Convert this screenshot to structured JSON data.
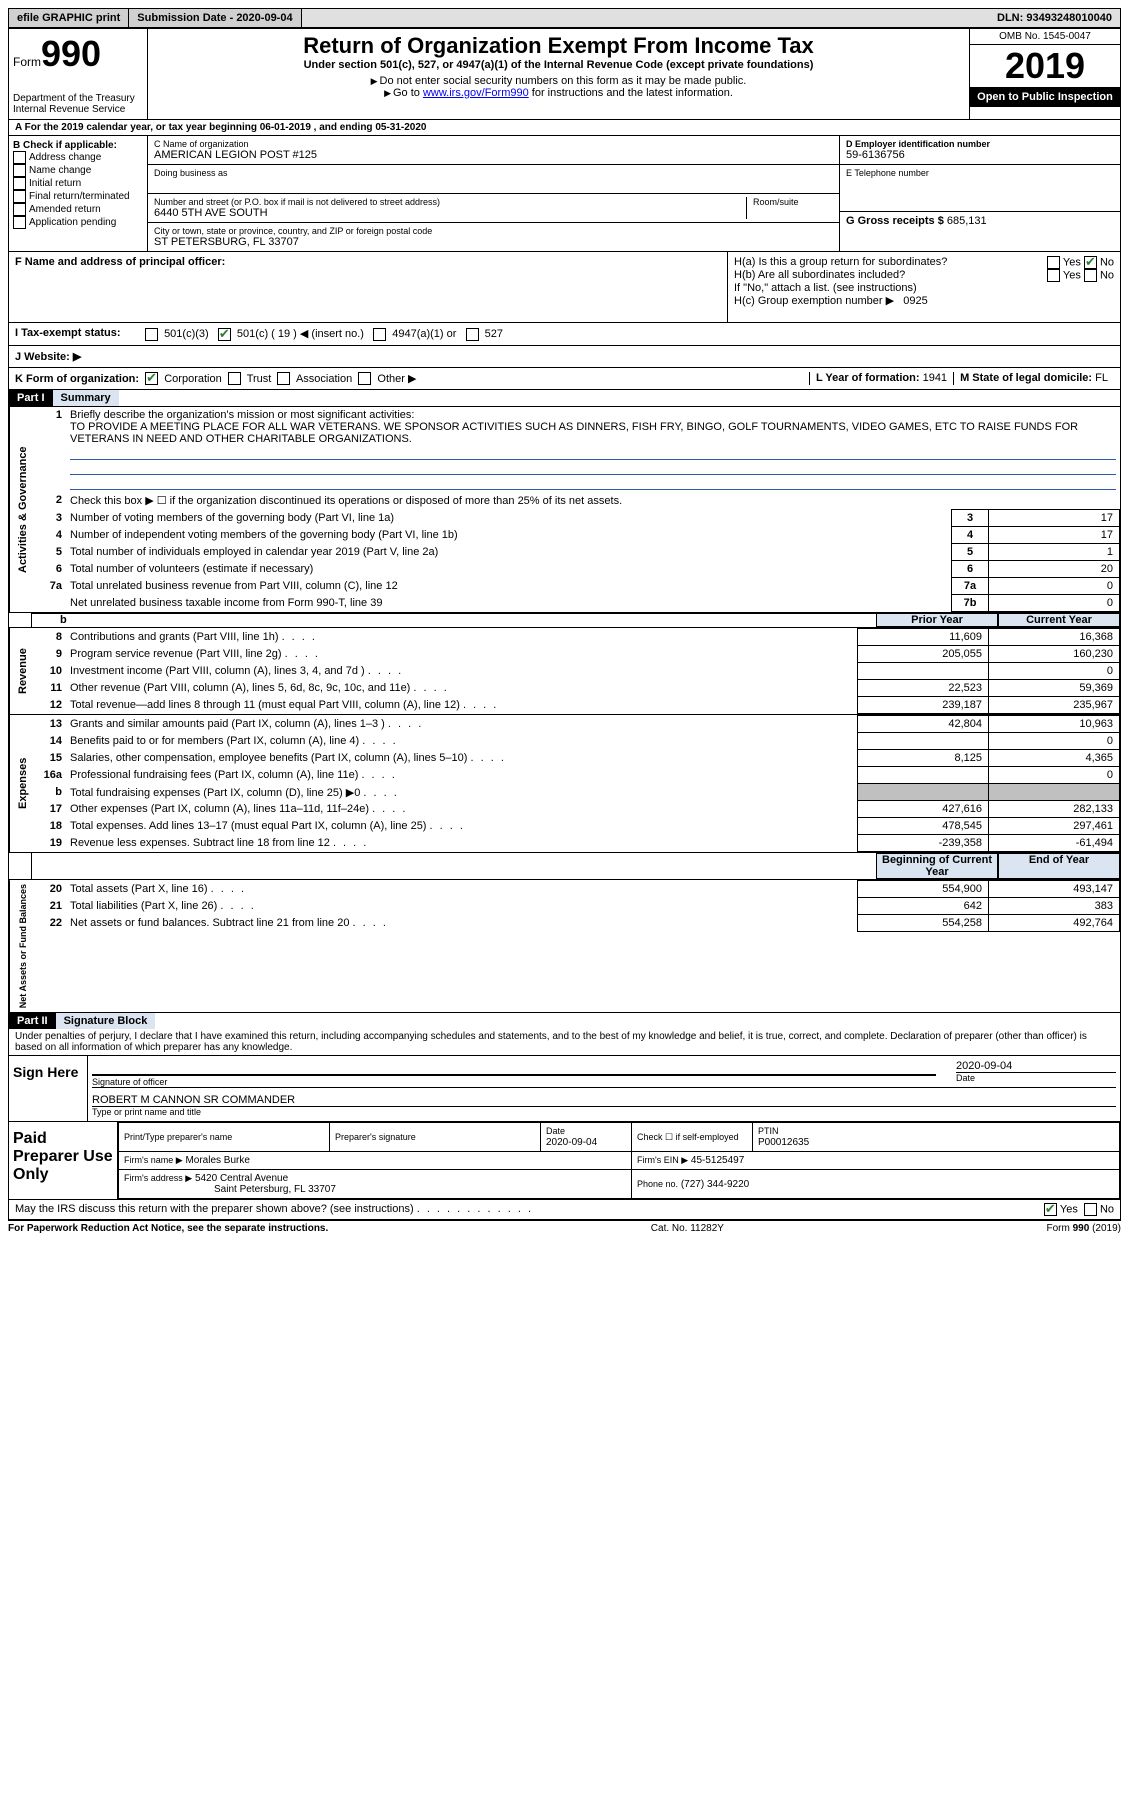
{
  "topbar": {
    "efile": "efile GRAPHIC print",
    "submission_label": "Submission Date - 2020-09-04",
    "dln": "DLN: 93493248010040"
  },
  "header": {
    "form_word": "Form",
    "form_number": "990",
    "dept": "Department of the Treasury",
    "irs": "Internal Revenue Service",
    "title": "Return of Organization Exempt From Income Tax",
    "subtitle": "Under section 501(c), 527, or 4947(a)(1) of the Internal Revenue Code (except private foundations)",
    "note1": "Do not enter social security numbers on this form as it may be made public.",
    "note2_pre": "Go to ",
    "note2_link": "www.irs.gov/Form990",
    "note2_post": " for instructions and the latest information.",
    "omb": "OMB No. 1545-0047",
    "year": "2019",
    "inspection": "Open to Public Inspection"
  },
  "section_a": "A For the 2019 calendar year, or tax year beginning 06-01-2019   , and ending 05-31-2020",
  "section_b": {
    "label": "B Check if applicable:",
    "items": [
      "Address change",
      "Name change",
      "Initial return",
      "Final return/terminated",
      "Amended return",
      "Application pending"
    ]
  },
  "section_c": {
    "name_label": "C Name of organization",
    "name": "AMERICAN LEGION POST #125",
    "dba_label": "Doing business as",
    "addr_label": "Number and street (or P.O. box if mail is not delivered to street address)",
    "room_label": "Room/suite",
    "addr": "6440 5TH AVE SOUTH",
    "city_label": "City or town, state or province, country, and ZIP or foreign postal code",
    "city": "ST PETERSBURG, FL  33707"
  },
  "section_d": {
    "label": "D Employer identification number",
    "value": "59-6136756"
  },
  "section_e": {
    "label": "E Telephone number"
  },
  "section_g": {
    "label": "G Gross receipts $",
    "value": "685,131"
  },
  "section_f": {
    "label": "F  Name and address of principal officer:"
  },
  "section_h": {
    "ha": "H(a)  Is this a group return for subordinates?",
    "hb": "H(b)  Are all subordinates included?",
    "hb_note": "If \"No,\" attach a list. (see instructions)",
    "hc": "H(c)  Group exemption number ▶",
    "hc_val": "0925",
    "yes": "Yes",
    "no": "No"
  },
  "section_i": {
    "label": "I  Tax-exempt status:",
    "opts": [
      "501(c)(3)",
      "501(c) ( 19 ) ◀ (insert no.)",
      "4947(a)(1) or",
      "527"
    ]
  },
  "section_j": {
    "label": "J  Website: ▶"
  },
  "section_k": {
    "label": "K Form of organization:",
    "opts": [
      "Corporation",
      "Trust",
      "Association",
      "Other ▶"
    ]
  },
  "section_l": {
    "label": "L Year of formation:",
    "value": "1941"
  },
  "section_m": {
    "label": "M State of legal domicile:",
    "value": "FL"
  },
  "part1": {
    "part": "Part I",
    "title": "Summary",
    "line1_label": "Briefly describe the organization's mission or most significant activities:",
    "line1_text": "TO PROVIDE A MEETING PLACE FOR ALL WAR VETERANS. WE SPONSOR ACTIVITIES SUCH AS DINNERS, FISH FRY, BINGO, GOLF TOURNAMENTS, VIDEO GAMES, ETC TO RAISE FUNDS FOR VETERANS IN NEED AND OTHER CHARITABLE ORGANIZATIONS.",
    "line2": "Check this box ▶ ☐  if the organization discontinued its operations or disposed of more than 25% of its net assets.",
    "governance_lines": [
      {
        "n": "3",
        "t": "Number of voting members of the governing body (Part VI, line 1a)",
        "box": "3",
        "v": "17"
      },
      {
        "n": "4",
        "t": "Number of independent voting members of the governing body (Part VI, line 1b)",
        "box": "4",
        "v": "17"
      },
      {
        "n": "5",
        "t": "Total number of individuals employed in calendar year 2019 (Part V, line 2a)",
        "box": "5",
        "v": "1"
      },
      {
        "n": "6",
        "t": "Total number of volunteers (estimate if necessary)",
        "box": "6",
        "v": "20"
      },
      {
        "n": "7a",
        "t": "Total unrelated business revenue from Part VIII, column (C), line 12",
        "box": "7a",
        "v": "0"
      },
      {
        "n": "",
        "t": "Net unrelated business taxable income from Form 990-T, line 39",
        "box": "7b",
        "v": "0"
      }
    ],
    "col_prior": "Prior Year",
    "col_current": "Current Year",
    "revenue_lines": [
      {
        "n": "8",
        "t": "Contributions and grants (Part VIII, line 1h)",
        "p": "11,609",
        "c": "16,368"
      },
      {
        "n": "9",
        "t": "Program service revenue (Part VIII, line 2g)",
        "p": "205,055",
        "c": "160,230"
      },
      {
        "n": "10",
        "t": "Investment income (Part VIII, column (A), lines 3, 4, and 7d )",
        "p": "",
        "c": "0"
      },
      {
        "n": "11",
        "t": "Other revenue (Part VIII, column (A), lines 5, 6d, 8c, 9c, 10c, and 11e)",
        "p": "22,523",
        "c": "59,369"
      },
      {
        "n": "12",
        "t": "Total revenue—add lines 8 through 11 (must equal Part VIII, column (A), line 12)",
        "p": "239,187",
        "c": "235,967"
      }
    ],
    "expense_lines": [
      {
        "n": "13",
        "t": "Grants and similar amounts paid (Part IX, column (A), lines 1–3 )",
        "p": "42,804",
        "c": "10,963"
      },
      {
        "n": "14",
        "t": "Benefits paid to or for members (Part IX, column (A), line 4)",
        "p": "",
        "c": "0"
      },
      {
        "n": "15",
        "t": "Salaries, other compensation, employee benefits (Part IX, column (A), lines 5–10)",
        "p": "8,125",
        "c": "4,365"
      },
      {
        "n": "16a",
        "t": "Professional fundraising fees (Part IX, column (A), line 11e)",
        "p": "",
        "c": "0"
      },
      {
        "n": "b",
        "t": "Total fundraising expenses (Part IX, column (D), line 25) ▶0",
        "p": "GRAY",
        "c": "GRAY"
      },
      {
        "n": "17",
        "t": "Other expenses (Part IX, column (A), lines 11a–11d, 11f–24e)",
        "p": "427,616",
        "c": "282,133"
      },
      {
        "n": "18",
        "t": "Total expenses. Add lines 13–17 (must equal Part IX, column (A), line 25)",
        "p": "478,545",
        "c": "297,461"
      },
      {
        "n": "19",
        "t": "Revenue less expenses. Subtract line 18 from line 12",
        "p": "-239,358",
        "c": "-61,494"
      }
    ],
    "col_begin": "Beginning of Current Year",
    "col_end": "End of Year",
    "net_lines": [
      {
        "n": "20",
        "t": "Total assets (Part X, line 16)",
        "p": "554,900",
        "c": "493,147"
      },
      {
        "n": "21",
        "t": "Total liabilities (Part X, line 26)",
        "p": "642",
        "c": "383"
      },
      {
        "n": "22",
        "t": "Net assets or fund balances. Subtract line 21 from line 20",
        "p": "554,258",
        "c": "492,764"
      }
    ],
    "vlabels": {
      "gov": "Activities & Governance",
      "rev": "Revenue",
      "exp": "Expenses",
      "net": "Net Assets or Fund Balances"
    }
  },
  "part2": {
    "part": "Part II",
    "title": "Signature Block",
    "penalty": "Under penalties of perjury, I declare that I have examined this return, including accompanying schedules and statements, and to the best of my knowledge and belief, it is true, correct, and complete. Declaration of preparer (other than officer) is based on all information of which preparer has any knowledge.",
    "sign_here": "Sign Here",
    "sig_officer": "Signature of officer",
    "sig_date": "Date",
    "sig_date_val": "2020-09-04",
    "officer_name": "ROBERT M CANNON SR  COMMANDER",
    "officer_name_label": "Type or print name and title",
    "paid_prep": "Paid Preparer Use Only",
    "prep_name_label": "Print/Type preparer's name",
    "prep_sig_label": "Preparer's signature",
    "prep_date_label": "Date",
    "prep_date": "2020-09-04",
    "check_self": "Check ☐ if self-employed",
    "ptin_label": "PTIN",
    "ptin": "P00012635",
    "firm_name_label": "Firm's name   ▶",
    "firm_name": "Morales Burke",
    "firm_ein_label": "Firm's EIN ▶",
    "firm_ein": "45-5125497",
    "firm_addr_label": "Firm's address ▶",
    "firm_addr1": "5420 Central Avenue",
    "firm_addr2": "Saint Petersburg, FL  33707",
    "firm_phone_label": "Phone no.",
    "firm_phone": "(727) 344-9220",
    "discuss": "May the IRS discuss this return with the preparer shown above? (see instructions)"
  },
  "footer": {
    "left": "For Paperwork Reduction Act Notice, see the separate instructions.",
    "center": "Cat. No. 11282Y",
    "right": "Form 990 (2019)"
  }
}
